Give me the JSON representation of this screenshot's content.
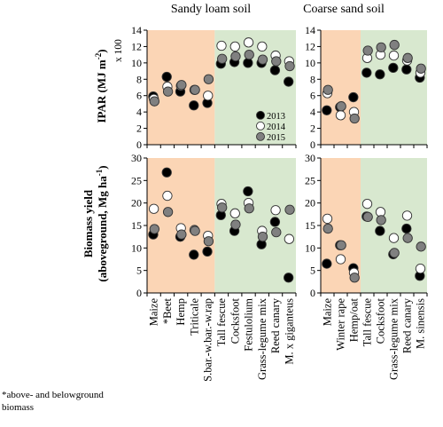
{
  "figure": {
    "left_title": "Sandy loam soil",
    "right_title": "Coarse sand soil",
    "y_top_label": "IPAR (MJ m",
    "y_top_sup": "-2",
    "y_top_close": ")",
    "y_bottom_line1": "Biomass yield",
    "y_bottom_line2": "(aboveground, Mg ha",
    "y_bottom_sup": "-1",
    "y_bottom_close": ")",
    "scale_note": "x 100",
    "footnote_line1": "*above- and belowground",
    "footnote_line2": "biomass",
    "colors": {
      "annual_bg": "#fbd5b5",
      "perennial_bg": "#d8e8cf",
      "c2013": "#000000",
      "c2014": "#ffffff",
      "c2015": "#808080"
    }
  },
  "chart_data": [
    {
      "type": "scatter",
      "panel": "top-left",
      "ylim": [
        0,
        14
      ],
      "yticks": [
        0,
        2,
        4,
        6,
        8,
        10,
        12,
        14
      ],
      "categories": [
        "Maize",
        "*Beet",
        "Hemp",
        "Triticale",
        "S.bar.-w.bar.-w.rap",
        "Tall fescue",
        "Cocksfoot",
        "Festulolium",
        "Grass-legume mix",
        "Reed canary",
        "M. x giganteus"
      ],
      "annual_count": 5,
      "series": [
        {
          "name": "2013",
          "values": [
            5.9,
            8.3,
            6.5,
            4.8,
            5.1,
            9.9,
            10.1,
            10.0,
            10.0,
            9.1,
            7.7
          ]
        },
        {
          "name": "2014",
          "values": [
            5.6,
            7.1,
            7.2,
            6.7,
            6.0,
            12.1,
            12.0,
            12.5,
            12.0,
            10.9,
            10.2
          ]
        },
        {
          "name": "2015",
          "values": [
            5.3,
            6.5,
            7.3,
            6.7,
            8.0,
            10.5,
            10.8,
            11.0,
            10.4,
            10.2,
            9.6
          ]
        }
      ],
      "legend": [
        "2013",
        "2014",
        "2015"
      ]
    },
    {
      "type": "scatter",
      "panel": "top-right",
      "ylim": [
        0,
        14
      ],
      "yticks": [
        0,
        2,
        4,
        6,
        8,
        10,
        12,
        14
      ],
      "categories": [
        "Maize",
        "Winter rape",
        "Hemp/oat",
        "Tall fescue",
        "Cocksfoot",
        "Grass-legume mix",
        "Reed canary",
        "M. sinensis"
      ],
      "annual_count": 3,
      "series": [
        {
          "name": "2013",
          "values": [
            4.2,
            4.6,
            5.8,
            8.8,
            8.6,
            9.4,
            9.2,
            8.2
          ]
        },
        {
          "name": "2014",
          "values": [
            6.3,
            3.6,
            4.0,
            10.6,
            11.0,
            10.9,
            10.3,
            8.8
          ]
        },
        {
          "name": "2015",
          "values": [
            6.7,
            4.7,
            3.2,
            11.5,
            11.9,
            12.2,
            10.6,
            9.3
          ]
        }
      ]
    },
    {
      "type": "scatter",
      "panel": "bottom-left",
      "ylim": [
        0,
        30
      ],
      "yticks": [
        0,
        5,
        10,
        15,
        20,
        25,
        30
      ],
      "categories": [
        "Maize",
        "*Beet",
        "Hemp",
        "Triticale",
        "S.bar.-w.bar.-w.rap",
        "Tall fescue",
        "Cocksfoot",
        "Festulolium",
        "Grass-legume mix",
        "Reed canary",
        "M. x giganteus"
      ],
      "annual_count": 5,
      "series": [
        {
          "name": "2013",
          "values": [
            13.0,
            26.8,
            12.5,
            8.5,
            9.2,
            17.3,
            13.8,
            22.6,
            10.8,
            15.8,
            3.4
          ]
        },
        {
          "name": "2014",
          "values": [
            18.7,
            21.6,
            14.4,
            14.0,
            12.7,
            19.8,
            17.7,
            20.0,
            13.8,
            18.4,
            12.0
          ]
        },
        {
          "name": "2015",
          "values": [
            14.2,
            18.0,
            13.0,
            13.8,
            11.5,
            19.0,
            15.2,
            18.8,
            12.5,
            13.5,
            18.5
          ]
        }
      ]
    },
    {
      "type": "scatter",
      "panel": "bottom-right",
      "ylim": [
        0,
        30
      ],
      "yticks": [
        0,
        5,
        10,
        15,
        20,
        25,
        30
      ],
      "categories": [
        "Maize",
        "Winter rape",
        "Hemp/oat",
        "Tall fescue",
        "Cocksfoot",
        "Grass-legume mix",
        "Reed canary",
        "M. sinensis"
      ],
      "annual_count": 3,
      "series": [
        {
          "name": "2013",
          "values": [
            6.5,
            10.6,
            5.5,
            17.0,
            13.8,
            8.6,
            14.3,
            3.8
          ]
        },
        {
          "name": "2014",
          "values": [
            16.5,
            7.5,
            4.5,
            19.8,
            18.0,
            12.2,
            17.2,
            5.4
          ]
        },
        {
          "name": "2015",
          "values": [
            14.3,
            10.6,
            3.4,
            16.9,
            16.2,
            8.9,
            12.2,
            10.3
          ]
        }
      ]
    }
  ]
}
